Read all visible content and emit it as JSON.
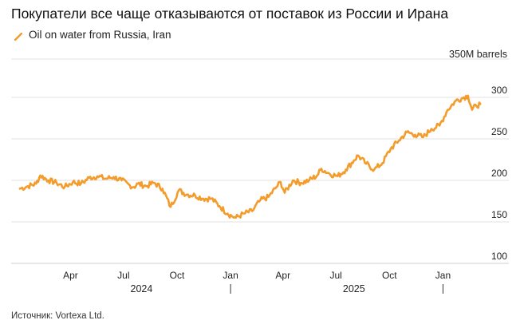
{
  "title": "Покупатели все чаще отказываются от поставок из России и Ирана",
  "source": "Источник: Vortexa Ltd.",
  "chart_data": {
    "type": "line",
    "title": "Покупатели все чаще отказываются от поставок из России и Ирана",
    "legend_position": "top-left",
    "y_unit_label": "350M barrels",
    "ylim": [
      100,
      350
    ],
    "y_ticks": [
      {
        "value": 300,
        "label": "300"
      },
      {
        "value": 250,
        "label": "250"
      },
      {
        "value": 200,
        "label": "200"
      },
      {
        "value": 150,
        "label": "150"
      },
      {
        "value": 100,
        "label": "100"
      }
    ],
    "grid": true,
    "x_ticks": [
      {
        "date": "2024-04-01",
        "label": "Apr"
      },
      {
        "date": "2024-07-01",
        "label": "Jul"
      },
      {
        "date": "2024-10-01",
        "label": "Oct"
      },
      {
        "date": "2025-01-01",
        "label": "Jan"
      },
      {
        "date": "2025-04-01",
        "label": "Apr"
      },
      {
        "date": "2025-07-01",
        "label": "Jul"
      },
      {
        "date": "2025-10-01",
        "label": "Oct"
      },
      {
        "date": "2026-01-01",
        "label": "Jan"
      }
    ],
    "year_labels": [
      {
        "date": "2024-08-01",
        "label": "2024"
      },
      {
        "date": "2025-08-01",
        "label": "2025"
      }
    ],
    "year_separators": [
      "2025-01-01",
      "2026-01-01"
    ],
    "series": [
      {
        "name": "Oil on water from Russia, Iran",
        "color": "#f39c2b",
        "points": [
          [
            "2024-01-05",
            190
          ],
          [
            "2024-01-19",
            193
          ],
          [
            "2024-02-02",
            196
          ],
          [
            "2024-02-09",
            206
          ],
          [
            "2024-02-23",
            200
          ],
          [
            "2024-03-08",
            197
          ],
          [
            "2024-03-22",
            192
          ],
          [
            "2024-04-05",
            198
          ],
          [
            "2024-04-19",
            196
          ],
          [
            "2024-05-03",
            203
          ],
          [
            "2024-05-17",
            205
          ],
          [
            "2024-05-31",
            202
          ],
          [
            "2024-06-14",
            204
          ],
          [
            "2024-06-28",
            200
          ],
          [
            "2024-07-12",
            194
          ],
          [
            "2024-07-19",
            192
          ],
          [
            "2024-07-26",
            196
          ],
          [
            "2024-08-09",
            193
          ],
          [
            "2024-08-23",
            197
          ],
          [
            "2024-09-06",
            190
          ],
          [
            "2024-09-20",
            168
          ],
          [
            "2024-10-04",
            188
          ],
          [
            "2024-10-18",
            183
          ],
          [
            "2024-11-01",
            182
          ],
          [
            "2024-11-15",
            178
          ],
          [
            "2024-11-29",
            178
          ],
          [
            "2024-12-13",
            169
          ],
          [
            "2024-12-27",
            160
          ],
          [
            "2025-01-03",
            157
          ],
          [
            "2025-01-10",
            155
          ],
          [
            "2025-01-24",
            160
          ],
          [
            "2025-02-07",
            163
          ],
          [
            "2025-02-21",
            176
          ],
          [
            "2025-03-07",
            180
          ],
          [
            "2025-03-21",
            192
          ],
          [
            "2025-03-28",
            198
          ],
          [
            "2025-04-04",
            185
          ],
          [
            "2025-04-18",
            200
          ],
          [
            "2025-05-02",
            197
          ],
          [
            "2025-05-16",
            200
          ],
          [
            "2025-05-30",
            206
          ],
          [
            "2025-06-06",
            214
          ],
          [
            "2025-06-20",
            208
          ],
          [
            "2025-07-04",
            205
          ],
          [
            "2025-07-18",
            213
          ],
          [
            "2025-08-01",
            224
          ],
          [
            "2025-08-08",
            230
          ],
          [
            "2025-08-22",
            220
          ],
          [
            "2025-09-05",
            213
          ],
          [
            "2025-09-19",
            221
          ],
          [
            "2025-10-03",
            238
          ],
          [
            "2025-10-17",
            248
          ],
          [
            "2025-10-31",
            258
          ],
          [
            "2025-11-14",
            255
          ],
          [
            "2025-11-28",
            252
          ],
          [
            "2025-12-12",
            262
          ],
          [
            "2025-12-26",
            266
          ],
          [
            "2026-01-09",
            285
          ],
          [
            "2026-01-23",
            296
          ],
          [
            "2026-02-06",
            300
          ],
          [
            "2026-02-13",
            302
          ],
          [
            "2026-02-20",
            285
          ],
          [
            "2026-02-27",
            290
          ],
          [
            "2026-03-06",
            292
          ]
        ]
      }
    ]
  }
}
